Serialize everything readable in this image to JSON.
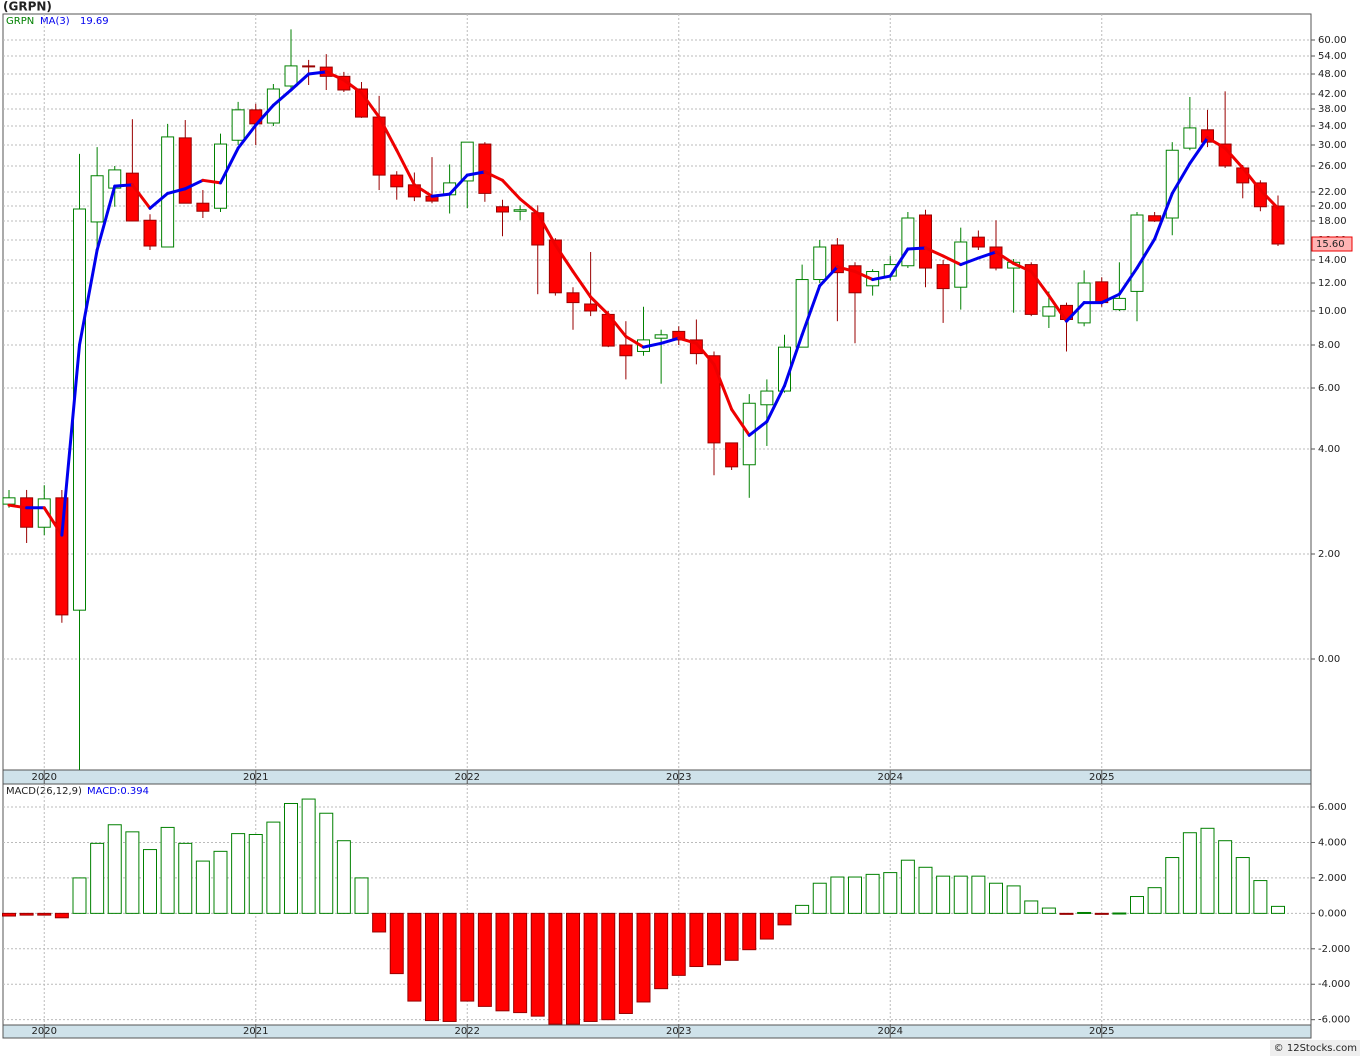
{
  "title": "(GRPN)",
  "footer": "© 12Stocks.com",
  "chart_data": [
    {
      "type": "candlestick",
      "legend": {
        "symbol": "GRPN",
        "ma_label": "MA(3)",
        "ma_value": "19.69"
      },
      "categories": [
        null,
        null,
        "2020",
        null,
        null,
        null,
        null,
        null,
        null,
        null,
        null,
        null,
        null,
        null,
        "2021",
        null,
        null,
        null,
        null,
        null,
        null,
        null,
        null,
        null,
        null,
        null,
        "2022",
        null,
        null,
        null,
        null,
        null,
        null,
        null,
        null,
        null,
        null,
        null,
        "2023",
        null,
        null,
        null,
        null,
        null,
        null,
        null,
        null,
        null,
        null,
        null,
        "2024",
        null,
        null,
        null,
        null,
        null,
        null,
        null,
        null,
        null,
        null,
        null,
        "2025",
        null,
        null,
        null,
        null,
        null,
        null,
        null,
        null,
        null,
        null
      ],
      "open": [
        2.95,
        3.07,
        2.51,
        3.07,
        0.93,
        17.9,
        22.6,
        24.9,
        18.1,
        15.3,
        31.5,
        20.4,
        19.7,
        31,
        37.8,
        34.7,
        44.4,
        50.7,
        50.3,
        47.3,
        43.5,
        36.1,
        24.6,
        23.1,
        21.4,
        21.6,
        23.7,
        30.2,
        19.9,
        19.3,
        19.1,
        16,
        11.3,
        10.5,
        9.8,
        8,
        7.7,
        8.4,
        8.8,
        8.3,
        7.5,
        4.2,
        3.7,
        5.45,
        5.9,
        7.9,
        12.3,
        15.5,
        13.5,
        11.8,
        12.6,
        13.5,
        18.8,
        13.6,
        11.7,
        16.3,
        15.3,
        13.3,
        13.6,
        9.7,
        10.4,
        9.3,
        12.1,
        10.1,
        11.4,
        18.7,
        18.4,
        29.4,
        33.2,
        30.2,
        25.7,
        23.4,
        20
      ],
      "high": [
        3.22,
        3.22,
        3.31,
        3.22,
        28.3,
        29.6,
        26,
        35.6,
        18.9,
        34.5,
        35.4,
        22.3,
        32.4,
        39.9,
        39.4,
        45,
        64.1,
        52.7,
        54.7,
        48.7,
        45.6,
        41.5,
        25.2,
        25,
        27.7,
        26.3,
        30.6,
        30.6,
        20.9,
        20.1,
        20.1,
        16.2,
        11.7,
        14.8,
        10,
        9.4,
        10.3,
        8.9,
        9.1,
        9.5,
        7.7,
        4.2,
        5.8,
        6.4,
        8.6,
        13.6,
        16,
        16.2,
        13.8,
        13.2,
        14.4,
        19.2,
        19.5,
        14,
        17.3,
        17,
        18.1,
        14.1,
        13.8,
        11.4,
        10.6,
        13.1,
        12.5,
        13.8,
        19.2,
        19.2,
        30.6,
        41.2,
        37.8,
        42.8,
        26.2,
        23.8,
        21.5
      ],
      "low": [
        2.88,
        2.21,
        2.36,
        0.69,
        -2.1,
        15,
        19.9,
        18,
        15,
        15.3,
        20.4,
        18.4,
        19.2,
        30,
        30,
        34,
        43.2,
        44.7,
        43.2,
        42.6,
        35.9,
        22.3,
        20.9,
        20.7,
        20.4,
        19,
        19.7,
        20.6,
        16.4,
        18.1,
        11.2,
        11.1,
        8.9,
        9.7,
        7.9,
        6.4,
        7.5,
        6.2,
        8,
        7.1,
        3.5,
        3.6,
        3.07,
        4.1,
        5.85,
        7.9,
        12,
        9.4,
        8.1,
        11.1,
        12.2,
        13.3,
        11.7,
        9.3,
        10.1,
        15,
        13.1,
        9.9,
        9.7,
        9,
        7.7,
        9.1,
        10.3,
        10,
        9.4,
        17.9,
        16.5,
        29,
        29.6,
        25.7,
        21.1,
        19.3,
        15.4
      ],
      "close": [
        3.07,
        2.51,
        3.05,
        0.84,
        19.6,
        24.5,
        25.4,
        18,
        15.4,
        31.7,
        20.4,
        19.3,
        30.2,
        37.8,
        34.5,
        43.5,
        50.7,
        50.5,
        47.3,
        43.2,
        36.1,
        24.6,
        22.8,
        21.3,
        20.7,
        23.4,
        30.6,
        21.8,
        19.2,
        19.5,
        15.5,
        11.3,
        10.6,
        10,
        7.95,
        7.5,
        8.3,
        8.6,
        8.3,
        7.6,
        4.2,
        3.66,
        5.5,
        5.9,
        7.9,
        12.3,
        15.3,
        12.9,
        11.3,
        13,
        13.6,
        18.4,
        13.3,
        11.6,
        15.8,
        15.3,
        13.3,
        13.8,
        9.8,
        10.3,
        9.5,
        12,
        10.6,
        10.9,
        18.8,
        18,
        29,
        33.6,
        30.6,
        26,
        23.4,
        19.9,
        15.6
      ],
      "up_color": "#008000",
      "down_color": "#ff0000",
      "ma": {
        "values": [
          2.93,
          2.88,
          2.88,
          2.36,
          8,
          15,
          22.9,
          23.1,
          19.7,
          21.8,
          22.5,
          23.8,
          23.4,
          29.4,
          34.2,
          39,
          43.2,
          48,
          48.7,
          46.2,
          42.3,
          36.1,
          29,
          23.1,
          21.4,
          21.7,
          24.6,
          25.1,
          23.8,
          21,
          19,
          15.5,
          13,
          11,
          9.8,
          8.5,
          7.9,
          8.1,
          8.4,
          8.1,
          7.1,
          5.3,
          4.45,
          4.9,
          6.1,
          8.6,
          11.8,
          13.4,
          13,
          12.3,
          12.6,
          15.1,
          15.2,
          14.4,
          13.6,
          14.2,
          14.8,
          13.7,
          13,
          11.1,
          9.4,
          10.6,
          10.6,
          11.2,
          13.3,
          16.1,
          21.8,
          26.5,
          31.5,
          29.4,
          25.7,
          22.3,
          19.69
        ],
        "up_color": "#0000ee",
        "down_color": "#ee0000"
      },
      "last_price": {
        "value": 15.6,
        "label": "15.60"
      },
      "ylim": [
        -2.1,
        70
      ],
      "yticks": [
        {
          "value": 0,
          "label": "0.00"
        },
        {
          "value": 2,
          "label": "2.00"
        },
        {
          "value": 4,
          "label": "4.00"
        },
        {
          "value": 6,
          "label": "6.00"
        },
        {
          "value": 8,
          "label": "8.00"
        },
        {
          "value": 10,
          "label": "10.00"
        },
        {
          "value": 12,
          "label": "12.00"
        },
        {
          "value": 14,
          "label": "14.00"
        },
        {
          "value": 16,
          "label": "16.00"
        },
        {
          "value": 18,
          "label": "18.00"
        },
        {
          "value": 20,
          "label": "20.00"
        },
        {
          "value": 22,
          "label": "22.00"
        },
        {
          "value": 26,
          "label": "26.00"
        },
        {
          "value": 30,
          "label": "30.00"
        },
        {
          "value": 34,
          "label": "34.00"
        },
        {
          "value": 38,
          "label": "38.00"
        },
        {
          "value": 42,
          "label": "42.00"
        },
        {
          "value": 48,
          "label": "48.00"
        },
        {
          "value": 54,
          "label": "54.00"
        },
        {
          "value": 60,
          "label": "60.00"
        }
      ],
      "grid": true
    },
    {
      "type": "bar",
      "legend": {
        "name": "MACD(26,12,9)",
        "value_text": "MACD:0.394"
      },
      "categories": [
        null,
        null,
        "2020",
        null,
        null,
        null,
        null,
        null,
        null,
        null,
        null,
        null,
        null,
        null,
        "2021",
        null,
        null,
        null,
        null,
        null,
        null,
        null,
        null,
        null,
        null,
        null,
        "2022",
        null,
        null,
        null,
        null,
        null,
        null,
        null,
        null,
        null,
        null,
        null,
        "2023",
        null,
        null,
        null,
        null,
        null,
        null,
        null,
        null,
        null,
        null,
        null,
        "2024",
        null,
        null,
        null,
        null,
        null,
        null,
        null,
        null,
        null,
        null,
        null,
        "2025",
        null,
        null,
        null,
        null,
        null,
        null,
        null,
        null,
        null,
        null
      ],
      "values": [
        -0.15,
        -0.1,
        -0.1,
        -0.25,
        2,
        3.95,
        5,
        4.6,
        3.6,
        4.85,
        3.95,
        2.95,
        3.5,
        4.5,
        4.45,
        5.15,
        6.2,
        6.45,
        5.65,
        4.1,
        2,
        -1.05,
        -3.4,
        -4.95,
        -6.05,
        -6.1,
        -4.95,
        -5.25,
        -5.5,
        -5.6,
        -5.8,
        -6.25,
        -6.25,
        -6.1,
        -6,
        -5.65,
        -5,
        -4.25,
        -3.5,
        -3,
        -2.9,
        -2.65,
        -2.05,
        -1.45,
        -0.65,
        0.45,
        1.7,
        2.05,
        2.05,
        2.2,
        2.3,
        3,
        2.6,
        2.1,
        2.1,
        2.1,
        1.7,
        1.55,
        0.7,
        0.3,
        -0.05,
        0.05,
        -0.05,
        0.02,
        0.95,
        1.45,
        3.15,
        4.55,
        4.8,
        4.1,
        3.15,
        1.85,
        0.394
      ],
      "up_color": "#008000",
      "down_color": "#ff0000",
      "ylim": [
        -6.3,
        7.3
      ],
      "yticks": [
        {
          "value": -6,
          "label": "-6.000"
        },
        {
          "value": -4,
          "label": "-4.000"
        },
        {
          "value": -2,
          "label": "-2.000"
        },
        {
          "value": 0,
          "label": "0.000"
        },
        {
          "value": 2,
          "label": "2.000"
        },
        {
          "value": 4,
          "label": "4.000"
        },
        {
          "value": 6,
          "label": "6.000"
        }
      ],
      "grid": true
    }
  ]
}
